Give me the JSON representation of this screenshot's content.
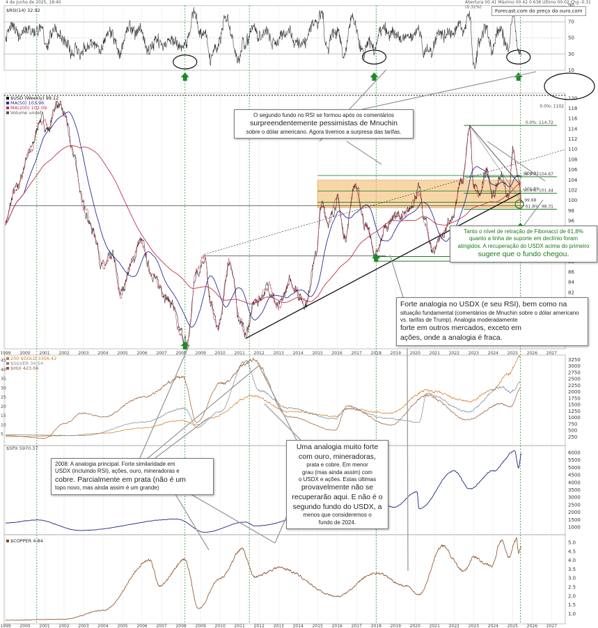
{
  "header": {
    "date": "4 de junho de 2025, 18:40",
    "quote": "Abertura 00.41 Máximo 00.42 0.638   Último 00.02 Chg -0.31 (0.31%)"
  },
  "forecast_badge": "Forecast.com do preço do ouro.com",
  "notes": {
    "mnuchin": [
      {
        "t": "O segundo fundo no RSI se formou após os comentários",
        "c": "s"
      },
      {
        "t": "surpreendentemente pessimistas de Mnuchin",
        "c": "b"
      },
      {
        "t": "sobre o dólar americano. Agora tivemos a surpresa das tarifas.",
        "c": "s"
      }
    ],
    "fibonacci": [
      {
        "t": "Tanto o nível de retração de Fibonacci de 61,8%",
        "c": "s"
      },
      {
        "t": "quanto a linha de suporte em declínio foram",
        "c": "s"
      },
      {
        "t": "atingidos. A recuperação do USDX acima do primeiro",
        "c": "s"
      },
      {
        "t": "sugere que o fundo chegou.",
        "c": "b"
      }
    ],
    "analogy": [
      {
        "t": "Forte analogia no USDX (e seu RSI), bem como na",
        "c": "b"
      },
      {
        "t": "situação fundamental (comentários de Mnuchin sobre o dólar americano",
        "c": "s"
      },
      {
        "t": "vs. tarifas de Trump). Analogia moderadamente",
        "c": "s"
      },
      {
        "t": "forte em outros mercados, exceto em",
        "c": "b"
      },
      {
        "t": "ações, onde a analogia é fraca.",
        "c": "b"
      }
    ],
    "y2008": [
      {
        "t": "2008: A analogia principal. Forte similaridade em",
        "c": "s"
      },
      {
        "t": "USDX (incluindo RSI), ações, ouro, mineradoras e",
        "c": "s"
      },
      {
        "t": "cobre. Parcialmente em prata (não é um",
        "c": "b"
      },
      {
        "t": "topo novo, mas ainda assim é um grande)",
        "c": "s"
      }
    ],
    "strong": [
      {
        "t": "Uma analogia muito forte",
        "c": "b"
      },
      {
        "t": "com ouro, mineradoras,",
        "c": "b"
      },
      {
        "t": "prata e cobre. Em menor",
        "c": "s"
      },
      {
        "t": "grau (mas ainda assim) com",
        "c": "s"
      },
      {
        "t": "o USDX e ações. Estas últimas",
        "c": "s"
      },
      {
        "t": "provavelmente não se",
        "c": "b"
      },
      {
        "t": "recuperarão aqui. E não é o",
        "c": "b"
      },
      {
        "t": "segundo fundo do USDX, a",
        "c": "b"
      },
      {
        "t": "menos que consideremos o",
        "c": "s"
      },
      {
        "t": "fundo de 2024.",
        "c": "s"
      }
    ]
  },
  "chart_data": [
    {
      "type": "line",
      "panel": "rsi",
      "title": "$RSI(14) 32.92",
      "ylim": [
        10,
        90
      ],
      "yticks": [
        10,
        30,
        50,
        70,
        90
      ],
      "hlines": [
        30,
        50,
        70
      ],
      "series": [
        {
          "name": "RSI(14)",
          "color": "#333333"
        }
      ]
    },
    {
      "type": "line",
      "panel": "usd",
      "legend": [
        "$USD (Weekly) 99.12",
        "MA(50) 103.96",
        "MA(200) 102.09",
        "Volume undef"
      ],
      "legend_colors": [
        "#111111",
        "#2a2a9a",
        "#c0304a",
        "#555555"
      ],
      "ylim": [
        71,
        121
      ],
      "yticks": [
        72,
        74,
        76,
        78,
        80,
        82,
        84,
        86,
        88,
        90,
        92,
        94,
        96,
        98,
        100,
        102,
        104,
        106,
        108,
        110,
        112,
        114,
        116,
        118,
        120
      ],
      "x_years": [
        1999,
        2000,
        2001,
        2002,
        2003,
        2004,
        2005,
        2006,
        2007,
        2008,
        2009,
        2010,
        2011,
        2012,
        2013,
        2014,
        2015,
        2016,
        2017,
        2018,
        2019,
        2020,
        2021,
        2022,
        2023,
        2024,
        2025,
        2026,
        2027
      ],
      "anchors": [
        [
          1999,
          96
        ],
        [
          1999.5,
          102
        ],
        [
          2000.3,
          110
        ],
        [
          2000.8,
          116
        ],
        [
          2001.2,
          114
        ],
        [
          2001.6,
          119
        ],
        [
          2002.0,
          117
        ],
        [
          2002.5,
          109
        ],
        [
          2003.0,
          99
        ],
        [
          2003.5,
          94
        ],
        [
          2004.0,
          87
        ],
        [
          2004.5,
          89
        ],
        [
          2004.9,
          82
        ],
        [
          2005.5,
          88
        ],
        [
          2005.9,
          92
        ],
        [
          2006.5,
          86
        ],
        [
          2006.9,
          83
        ],
        [
          2007.5,
          80
        ],
        [
          2008.0,
          74
        ],
        [
          2008.3,
          72
        ],
        [
          2008.8,
          86
        ],
        [
          2009.2,
          89
        ],
        [
          2009.5,
          80
        ],
        [
          2009.9,
          75
        ],
        [
          2010.5,
          88
        ],
        [
          2011.0,
          77
        ],
        [
          2011.3,
          74
        ],
        [
          2011.8,
          80
        ],
        [
          2012.5,
          83
        ],
        [
          2013.0,
          79
        ],
        [
          2013.6,
          84
        ],
        [
          2014.4,
          80
        ],
        [
          2014.9,
          89
        ],
        [
          2015.2,
          99
        ],
        [
          2015.6,
          96
        ],
        [
          2016.0,
          100
        ],
        [
          2016.4,
          93
        ],
        [
          2016.9,
          103
        ],
        [
          2017.5,
          95
        ],
        [
          2018.0,
          89
        ],
        [
          2018.5,
          95
        ],
        [
          2018.9,
          97
        ],
        [
          2019.5,
          97
        ],
        [
          2020.2,
          102
        ],
        [
          2020.5,
          96
        ],
        [
          2020.9,
          90
        ],
        [
          2021.3,
          93
        ],
        [
          2021.9,
          96
        ],
        [
          2022.4,
          104
        ],
        [
          2022.8,
          114
        ],
        [
          2023.0,
          103
        ],
        [
          2023.3,
          101
        ],
        [
          2023.7,
          106
        ],
        [
          2024.0,
          101
        ],
        [
          2024.4,
          105
        ],
        [
          2024.8,
          101
        ],
        [
          2025.0,
          110
        ],
        [
          2025.3,
          104
        ],
        [
          2025.45,
          99.12
        ]
      ],
      "fibonacci": [
        {
          "label": "0.0%: 114.72",
          "value": 114.72
        },
        {
          "label": "38.2%: 104.67",
          "value": 104.67
        },
        {
          "label": "50.0%: 101.44",
          "value": 101.44
        },
        {
          "label": "61.8%: 98.31",
          "value": 98.31
        },
        {
          "label": "100.0%: 89.05",
          "value": 89.05
        },
        {
          "label": "100.0%: 88.15",
          "value": 88.15
        }
      ],
      "fib_right": [
        "0.0%: 1102"
      ],
      "level_labels": [
        "104.91",
        "101.89",
        "99.68"
      ]
    },
    {
      "type": "line",
      "panel": "gold_miners",
      "legend": [
        "200 $GOLD 3356.42",
        "$SILVER 34.54",
        "$HUI 423.06"
      ],
      "legend_colors": [
        "#d47a20",
        "#7a8a9a",
        "#9a5a30"
      ],
      "yticks_left": [
        5,
        10,
        15,
        20,
        25,
        30,
        35,
        40,
        45
      ],
      "yticks_right": [
        250,
        500,
        750,
        1000,
        1250,
        1500,
        1750,
        2000,
        2250,
        2500,
        2750,
        3000,
        3250
      ],
      "series": [
        {
          "name": "$GOLD",
          "anchors": [
            [
              1999,
              270
            ],
            [
              2002,
              300
            ],
            [
              2004,
              400
            ],
            [
              2006,
              600
            ],
            [
              2008,
              900
            ],
            [
              2008.8,
              720
            ],
            [
              2009.5,
              1000
            ],
            [
              2011.7,
              1850
            ],
            [
              2013.5,
              1250
            ],
            [
              2015.9,
              1060
            ],
            [
              2016.5,
              1350
            ],
            [
              2018.7,
              1180
            ],
            [
              2020.6,
              2050
            ],
            [
              2022.8,
              1630
            ],
            [
              2023.9,
              2050
            ],
            [
              2024.8,
              2700
            ],
            [
              2025.4,
              3356
            ]
          ]
        },
        {
          "name": "$SILVER",
          "anchors": [
            [
              1999,
              5
            ],
            [
              2003,
              4.5
            ],
            [
              2006,
              12
            ],
            [
              2008.2,
              20
            ],
            [
              2008.8,
              9
            ],
            [
              2010,
              18
            ],
            [
              2011.3,
              47
            ],
            [
              2012,
              30
            ],
            [
              2013.5,
              20
            ],
            [
              2015.9,
              14
            ],
            [
              2016.5,
              20
            ],
            [
              2018.7,
              14
            ],
            [
              2020.2,
              12
            ],
            [
              2020.6,
              28
            ],
            [
              2022.7,
              18
            ],
            [
              2024.4,
              32
            ],
            [
              2024.9,
              29
            ],
            [
              2025.4,
              34.5
            ]
          ]
        },
        {
          "name": "$HUI",
          "anchors": [
            [
              1999,
              60
            ],
            [
              2001,
              40
            ],
            [
              2002,
              150
            ],
            [
              2003,
              230
            ],
            [
              2004,
              200
            ],
            [
              2006,
              350
            ],
            [
              2008.1,
              500
            ],
            [
              2008.8,
              160
            ],
            [
              2010,
              450
            ],
            [
              2011.7,
              630
            ],
            [
              2013.5,
              200
            ],
            [
              2015.9,
              100
            ],
            [
              2016.5,
              280
            ],
            [
              2018.7,
              140
            ],
            [
              2020.6,
              360
            ],
            [
              2022.7,
              180
            ],
            [
              2024.4,
              300
            ],
            [
              2024.9,
              280
            ],
            [
              2025.4,
              423
            ]
          ]
        }
      ]
    },
    {
      "type": "line",
      "panel": "spx",
      "legend": [
        "$SPX 5970.37"
      ],
      "legend_colors": [
        "#1a237e"
      ],
      "yticks": [
        1000,
        1500,
        2000,
        2500,
        3000,
        3500,
        4000,
        4500,
        5000,
        5500,
        6000
      ],
      "series": [
        {
          "name": "$SPX",
          "anchors": [
            [
              1999,
              1300
            ],
            [
              2000.6,
              1500
            ],
            [
              2002.8,
              800
            ],
            [
              2007.8,
              1560
            ],
            [
              2009.2,
              680
            ],
            [
              2011.3,
              1360
            ],
            [
              2011.8,
              1100
            ],
            [
              2015.5,
              2100
            ],
            [
              2016.1,
              1850
            ],
            [
              2018.0,
              2850
            ],
            [
              2018.9,
              2350
            ],
            [
              2020.1,
              3380
            ],
            [
              2020.2,
              2250
            ],
            [
              2022.0,
              4800
            ],
            [
              2022.8,
              3580
            ],
            [
              2024.0,
              4800
            ],
            [
              2025.1,
              6100
            ],
            [
              2025.3,
              5000
            ],
            [
              2025.45,
              5970
            ]
          ]
        }
      ]
    },
    {
      "type": "line",
      "panel": "copper",
      "legend": [
        "$COPPER 4.84"
      ],
      "legend_colors": [
        "#8a4a20"
      ],
      "yticks": [
        1.0,
        1.5,
        2.0,
        2.5,
        3.0,
        3.5,
        4.0,
        4.5,
        5.0
      ],
      "series": [
        {
          "name": "$COPPER",
          "anchors": [
            [
              1999,
              0.65
            ],
            [
              2002,
              0.7
            ],
            [
              2004,
              1.2
            ],
            [
              2006.4,
              4.0
            ],
            [
              2006.9,
              2.6
            ],
            [
              2008.2,
              4.0
            ],
            [
              2008.9,
              1.3
            ],
            [
              2010,
              3.0
            ],
            [
              2011.1,
              4.6
            ],
            [
              2011.8,
              3.1
            ],
            [
              2013,
              3.6
            ],
            [
              2016.0,
              2.0
            ],
            [
              2018.0,
              3.3
            ],
            [
              2019.5,
              2.6
            ],
            [
              2020.2,
              2.1
            ],
            [
              2021.4,
              4.8
            ],
            [
              2022.5,
              3.4
            ],
            [
              2023.0,
              4.2
            ],
            [
              2023.9,
              3.7
            ],
            [
              2024.4,
              5.1
            ],
            [
              2024.8,
              4.2
            ],
            [
              2025.2,
              5.2
            ],
            [
              2025.3,
              4.4
            ],
            [
              2025.45,
              4.84
            ]
          ]
        }
      ]
    }
  ]
}
